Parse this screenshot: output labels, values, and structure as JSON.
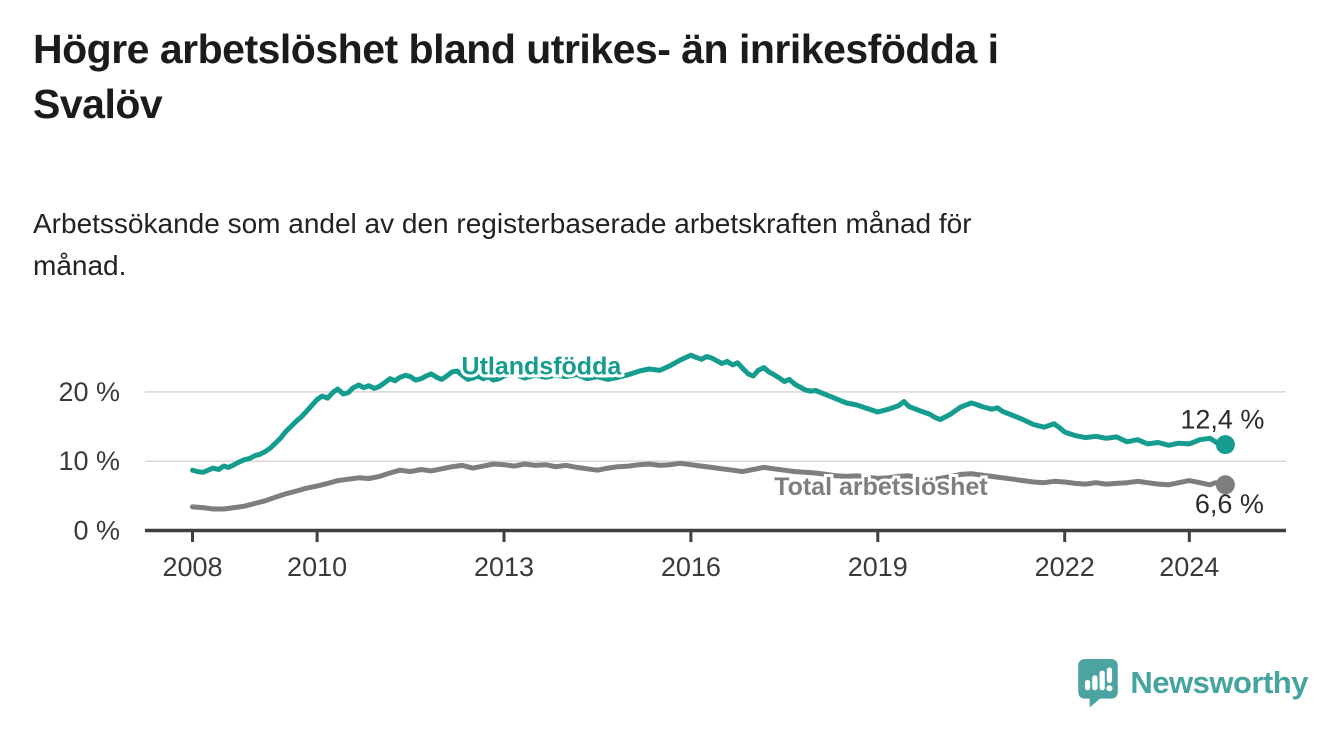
{
  "header": {
    "title": "Högre arbetslöshet bland utrikes- än inrikesfödda i\nSvalöv",
    "subtitle": "Arbetssökande som andel av den registerbaserade arbetskraften månad för\nmånad."
  },
  "footer": {
    "brand": "Newsworthy",
    "logo_icon": "bar-chart-speech-bubble-icon"
  },
  "colors": {
    "foreign_born": "#149c8e",
    "total": "#7e7e7e",
    "gridline": "#d8d8d8",
    "axis": "#3f3f3f",
    "tick_text": "#3a3a3a",
    "value_text": "#2b2b2b",
    "title_text": "#1b1b1b",
    "brand_teal": "#45a3a0"
  },
  "chart_data": {
    "type": "line",
    "title": "Högre arbetslöshet bland utrikes- än inrikesfödda i Svalöv",
    "subtitle": "Arbetssökande som andel av den registerbaserade arbetskraften månad för månad.",
    "xlabel": "",
    "ylabel": "",
    "unit": "%",
    "grid": "horizontal",
    "legend_position": "inline-labels",
    "xlim": [
      2007.25,
      2025.5
    ],
    "ylim": [
      0,
      27.5
    ],
    "x_ticks": [
      {
        "year": 2008,
        "label": "2008"
      },
      {
        "year": 2010,
        "label": "2010"
      },
      {
        "year": 2013,
        "label": "2013"
      },
      {
        "year": 2016,
        "label": "2016"
      },
      {
        "year": 2019,
        "label": "2019"
      },
      {
        "year": 2022,
        "label": "2022"
      },
      {
        "year": 2024,
        "label": "2024"
      }
    ],
    "y_ticks": [
      {
        "value": 0,
        "label": "0 %"
      },
      {
        "value": 10,
        "label": "10 %"
      },
      {
        "value": 20,
        "label": "20 %"
      }
    ],
    "series": [
      {
        "name": "Utlandsfödda",
        "color": "#149c8e",
        "end_label": "12,4 %",
        "end_value": 12.4,
        "label_anchor": {
          "year": 2013.6,
          "value": 23.7
        },
        "points": [
          [
            2008.0,
            8.7
          ],
          [
            2008.08,
            8.5
          ],
          [
            2008.17,
            8.4
          ],
          [
            2008.25,
            8.7
          ],
          [
            2008.33,
            9.0
          ],
          [
            2008.42,
            8.8
          ],
          [
            2008.5,
            9.3
          ],
          [
            2008.58,
            9.1
          ],
          [
            2008.67,
            9.5
          ],
          [
            2008.75,
            9.9
          ],
          [
            2008.83,
            10.2
          ],
          [
            2008.92,
            10.4
          ],
          [
            2009.0,
            10.8
          ],
          [
            2009.08,
            11.0
          ],
          [
            2009.17,
            11.4
          ],
          [
            2009.25,
            11.9
          ],
          [
            2009.33,
            12.6
          ],
          [
            2009.42,
            13.4
          ],
          [
            2009.5,
            14.3
          ],
          [
            2009.58,
            15.0
          ],
          [
            2009.67,
            15.8
          ],
          [
            2009.75,
            16.4
          ],
          [
            2009.83,
            17.2
          ],
          [
            2009.92,
            18.1
          ],
          [
            2010.0,
            18.9
          ],
          [
            2010.08,
            19.4
          ],
          [
            2010.17,
            19.1
          ],
          [
            2010.25,
            19.9
          ],
          [
            2010.33,
            20.4
          ],
          [
            2010.42,
            19.7
          ],
          [
            2010.5,
            19.9
          ],
          [
            2010.58,
            20.6
          ],
          [
            2010.67,
            21.0
          ],
          [
            2010.75,
            20.6
          ],
          [
            2010.83,
            20.9
          ],
          [
            2010.92,
            20.5
          ],
          [
            2011.0,
            20.8
          ],
          [
            2011.08,
            21.3
          ],
          [
            2011.17,
            21.9
          ],
          [
            2011.25,
            21.6
          ],
          [
            2011.33,
            22.1
          ],
          [
            2011.42,
            22.4
          ],
          [
            2011.5,
            22.2
          ],
          [
            2011.58,
            21.7
          ],
          [
            2011.67,
            21.9
          ],
          [
            2011.75,
            22.3
          ],
          [
            2011.83,
            22.6
          ],
          [
            2011.92,
            22.1
          ],
          [
            2012.0,
            21.8
          ],
          [
            2012.08,
            22.3
          ],
          [
            2012.17,
            22.9
          ],
          [
            2012.25,
            23.0
          ],
          [
            2012.33,
            22.4
          ],
          [
            2012.42,
            21.8
          ],
          [
            2012.5,
            22.0
          ],
          [
            2012.58,
            22.3
          ],
          [
            2012.67,
            21.9
          ],
          [
            2012.75,
            22.2
          ],
          [
            2012.83,
            21.7
          ],
          [
            2012.92,
            21.9
          ],
          [
            2013.0,
            22.3
          ],
          [
            2013.17,
            22.6
          ],
          [
            2013.33,
            22.0
          ],
          [
            2013.5,
            22.4
          ],
          [
            2013.67,
            22.1
          ],
          [
            2013.83,
            22.4
          ],
          [
            2014.0,
            22.2
          ],
          [
            2014.17,
            22.5
          ],
          [
            2014.33,
            21.9
          ],
          [
            2014.5,
            22.2
          ],
          [
            2014.67,
            21.8
          ],
          [
            2014.83,
            22.1
          ],
          [
            2015.0,
            22.5
          ],
          [
            2015.17,
            23.0
          ],
          [
            2015.33,
            23.3
          ],
          [
            2015.5,
            23.1
          ],
          [
            2015.67,
            23.8
          ],
          [
            2015.83,
            24.6
          ],
          [
            2016.0,
            25.3
          ],
          [
            2016.08,
            25.0
          ],
          [
            2016.17,
            24.7
          ],
          [
            2016.25,
            25.1
          ],
          [
            2016.33,
            24.9
          ],
          [
            2016.5,
            24.1
          ],
          [
            2016.58,
            24.4
          ],
          [
            2016.67,
            23.9
          ],
          [
            2016.75,
            24.2
          ],
          [
            2016.83,
            23.4
          ],
          [
            2016.92,
            22.6
          ],
          [
            2017.0,
            22.3
          ],
          [
            2017.08,
            23.1
          ],
          [
            2017.17,
            23.5
          ],
          [
            2017.25,
            22.9
          ],
          [
            2017.33,
            22.5
          ],
          [
            2017.42,
            22.0
          ],
          [
            2017.5,
            21.5
          ],
          [
            2017.58,
            21.8
          ],
          [
            2017.67,
            21.1
          ],
          [
            2017.75,
            20.7
          ],
          [
            2017.83,
            20.3
          ],
          [
            2017.92,
            20.1
          ],
          [
            2018.0,
            20.2
          ],
          [
            2018.17,
            19.6
          ],
          [
            2018.33,
            19.0
          ],
          [
            2018.5,
            18.4
          ],
          [
            2018.67,
            18.1
          ],
          [
            2018.83,
            17.6
          ],
          [
            2019.0,
            17.1
          ],
          [
            2019.17,
            17.5
          ],
          [
            2019.33,
            18.0
          ],
          [
            2019.42,
            18.6
          ],
          [
            2019.5,
            17.9
          ],
          [
            2019.67,
            17.3
          ],
          [
            2019.83,
            16.8
          ],
          [
            2019.92,
            16.3
          ],
          [
            2020.0,
            16.0
          ],
          [
            2020.17,
            16.8
          ],
          [
            2020.33,
            17.8
          ],
          [
            2020.5,
            18.4
          ],
          [
            2020.58,
            18.2
          ],
          [
            2020.67,
            17.9
          ],
          [
            2020.83,
            17.5
          ],
          [
            2020.92,
            17.7
          ],
          [
            2021.0,
            17.2
          ],
          [
            2021.17,
            16.6
          ],
          [
            2021.33,
            16.0
          ],
          [
            2021.5,
            15.3
          ],
          [
            2021.67,
            14.9
          ],
          [
            2021.83,
            15.4
          ],
          [
            2021.92,
            14.8
          ],
          [
            2022.0,
            14.2
          ],
          [
            2022.17,
            13.7
          ],
          [
            2022.33,
            13.4
          ],
          [
            2022.5,
            13.6
          ],
          [
            2022.67,
            13.3
          ],
          [
            2022.83,
            13.5
          ],
          [
            2023.0,
            12.8
          ],
          [
            2023.17,
            13.1
          ],
          [
            2023.33,
            12.5
          ],
          [
            2023.5,
            12.7
          ],
          [
            2023.67,
            12.3
          ],
          [
            2023.83,
            12.6
          ],
          [
            2024.0,
            12.5
          ],
          [
            2024.17,
            13.1
          ],
          [
            2024.33,
            13.3
          ],
          [
            2024.42,
            12.8
          ],
          [
            2024.5,
            12.3
          ],
          [
            2024.58,
            12.4
          ]
        ]
      },
      {
        "name": "Total arbetslöshet",
        "color": "#7e7e7e",
        "end_label": "6,6 %",
        "end_value": 6.6,
        "label_anchor": {
          "year": 2019.05,
          "value": 6.3
        },
        "points": [
          [
            2008.0,
            3.4
          ],
          [
            2008.17,
            3.3
          ],
          [
            2008.33,
            3.1
          ],
          [
            2008.5,
            3.1
          ],
          [
            2008.67,
            3.3
          ],
          [
            2008.83,
            3.5
          ],
          [
            2009.0,
            3.9
          ],
          [
            2009.17,
            4.3
          ],
          [
            2009.33,
            4.8
          ],
          [
            2009.5,
            5.3
          ],
          [
            2009.67,
            5.7
          ],
          [
            2009.83,
            6.1
          ],
          [
            2010.0,
            6.4
          ],
          [
            2010.17,
            6.8
          ],
          [
            2010.33,
            7.2
          ],
          [
            2010.5,
            7.4
          ],
          [
            2010.67,
            7.6
          ],
          [
            2010.83,
            7.5
          ],
          [
            2011.0,
            7.8
          ],
          [
            2011.17,
            8.3
          ],
          [
            2011.33,
            8.7
          ],
          [
            2011.5,
            8.5
          ],
          [
            2011.67,
            8.8
          ],
          [
            2011.83,
            8.6
          ],
          [
            2012.0,
            8.9
          ],
          [
            2012.17,
            9.2
          ],
          [
            2012.33,
            9.4
          ],
          [
            2012.5,
            9.0
          ],
          [
            2012.67,
            9.3
          ],
          [
            2012.83,
            9.6
          ],
          [
            2013.0,
            9.5
          ],
          [
            2013.17,
            9.3
          ],
          [
            2013.33,
            9.6
          ],
          [
            2013.5,
            9.4
          ],
          [
            2013.67,
            9.5
          ],
          [
            2013.83,
            9.2
          ],
          [
            2014.0,
            9.4
          ],
          [
            2014.17,
            9.1
          ],
          [
            2014.33,
            8.9
          ],
          [
            2014.5,
            8.7
          ],
          [
            2014.67,
            9.0
          ],
          [
            2014.83,
            9.2
          ],
          [
            2015.0,
            9.3
          ],
          [
            2015.17,
            9.5
          ],
          [
            2015.33,
            9.6
          ],
          [
            2015.5,
            9.4
          ],
          [
            2015.67,
            9.5
          ],
          [
            2015.83,
            9.7
          ],
          [
            2016.0,
            9.5
          ],
          [
            2016.17,
            9.3
          ],
          [
            2016.33,
            9.1
          ],
          [
            2016.5,
            8.9
          ],
          [
            2016.67,
            8.7
          ],
          [
            2016.83,
            8.5
          ],
          [
            2017.0,
            8.8
          ],
          [
            2017.17,
            9.1
          ],
          [
            2017.33,
            8.9
          ],
          [
            2017.5,
            8.7
          ],
          [
            2017.67,
            8.5
          ],
          [
            2017.83,
            8.4
          ],
          [
            2018.0,
            8.3
          ],
          [
            2018.17,
            8.1
          ],
          [
            2018.33,
            7.9
          ],
          [
            2018.5,
            7.8
          ],
          [
            2018.67,
            7.9
          ],
          [
            2018.83,
            7.7
          ],
          [
            2019.0,
            7.5
          ],
          [
            2019.17,
            7.6
          ],
          [
            2019.33,
            7.8
          ],
          [
            2019.5,
            7.9
          ],
          [
            2019.67,
            7.6
          ],
          [
            2019.83,
            7.4
          ],
          [
            2020.0,
            7.5
          ],
          [
            2020.17,
            7.8
          ],
          [
            2020.33,
            8.1
          ],
          [
            2020.5,
            8.2
          ],
          [
            2020.67,
            8.0
          ],
          [
            2020.83,
            7.8
          ],
          [
            2021.0,
            7.6
          ],
          [
            2021.17,
            7.4
          ],
          [
            2021.33,
            7.2
          ],
          [
            2021.5,
            7.0
          ],
          [
            2021.67,
            6.9
          ],
          [
            2021.83,
            7.1
          ],
          [
            2022.0,
            7.0
          ],
          [
            2022.17,
            6.8
          ],
          [
            2022.33,
            6.7
          ],
          [
            2022.5,
            6.9
          ],
          [
            2022.67,
            6.7
          ],
          [
            2022.83,
            6.8
          ],
          [
            2023.0,
            6.9
          ],
          [
            2023.17,
            7.1
          ],
          [
            2023.33,
            6.9
          ],
          [
            2023.5,
            6.7
          ],
          [
            2023.67,
            6.6
          ],
          [
            2023.83,
            6.9
          ],
          [
            2024.0,
            7.2
          ],
          [
            2024.17,
            6.9
          ],
          [
            2024.33,
            6.6
          ],
          [
            2024.42,
            6.9
          ],
          [
            2024.5,
            6.7
          ],
          [
            2024.58,
            6.6
          ]
        ]
      }
    ]
  }
}
